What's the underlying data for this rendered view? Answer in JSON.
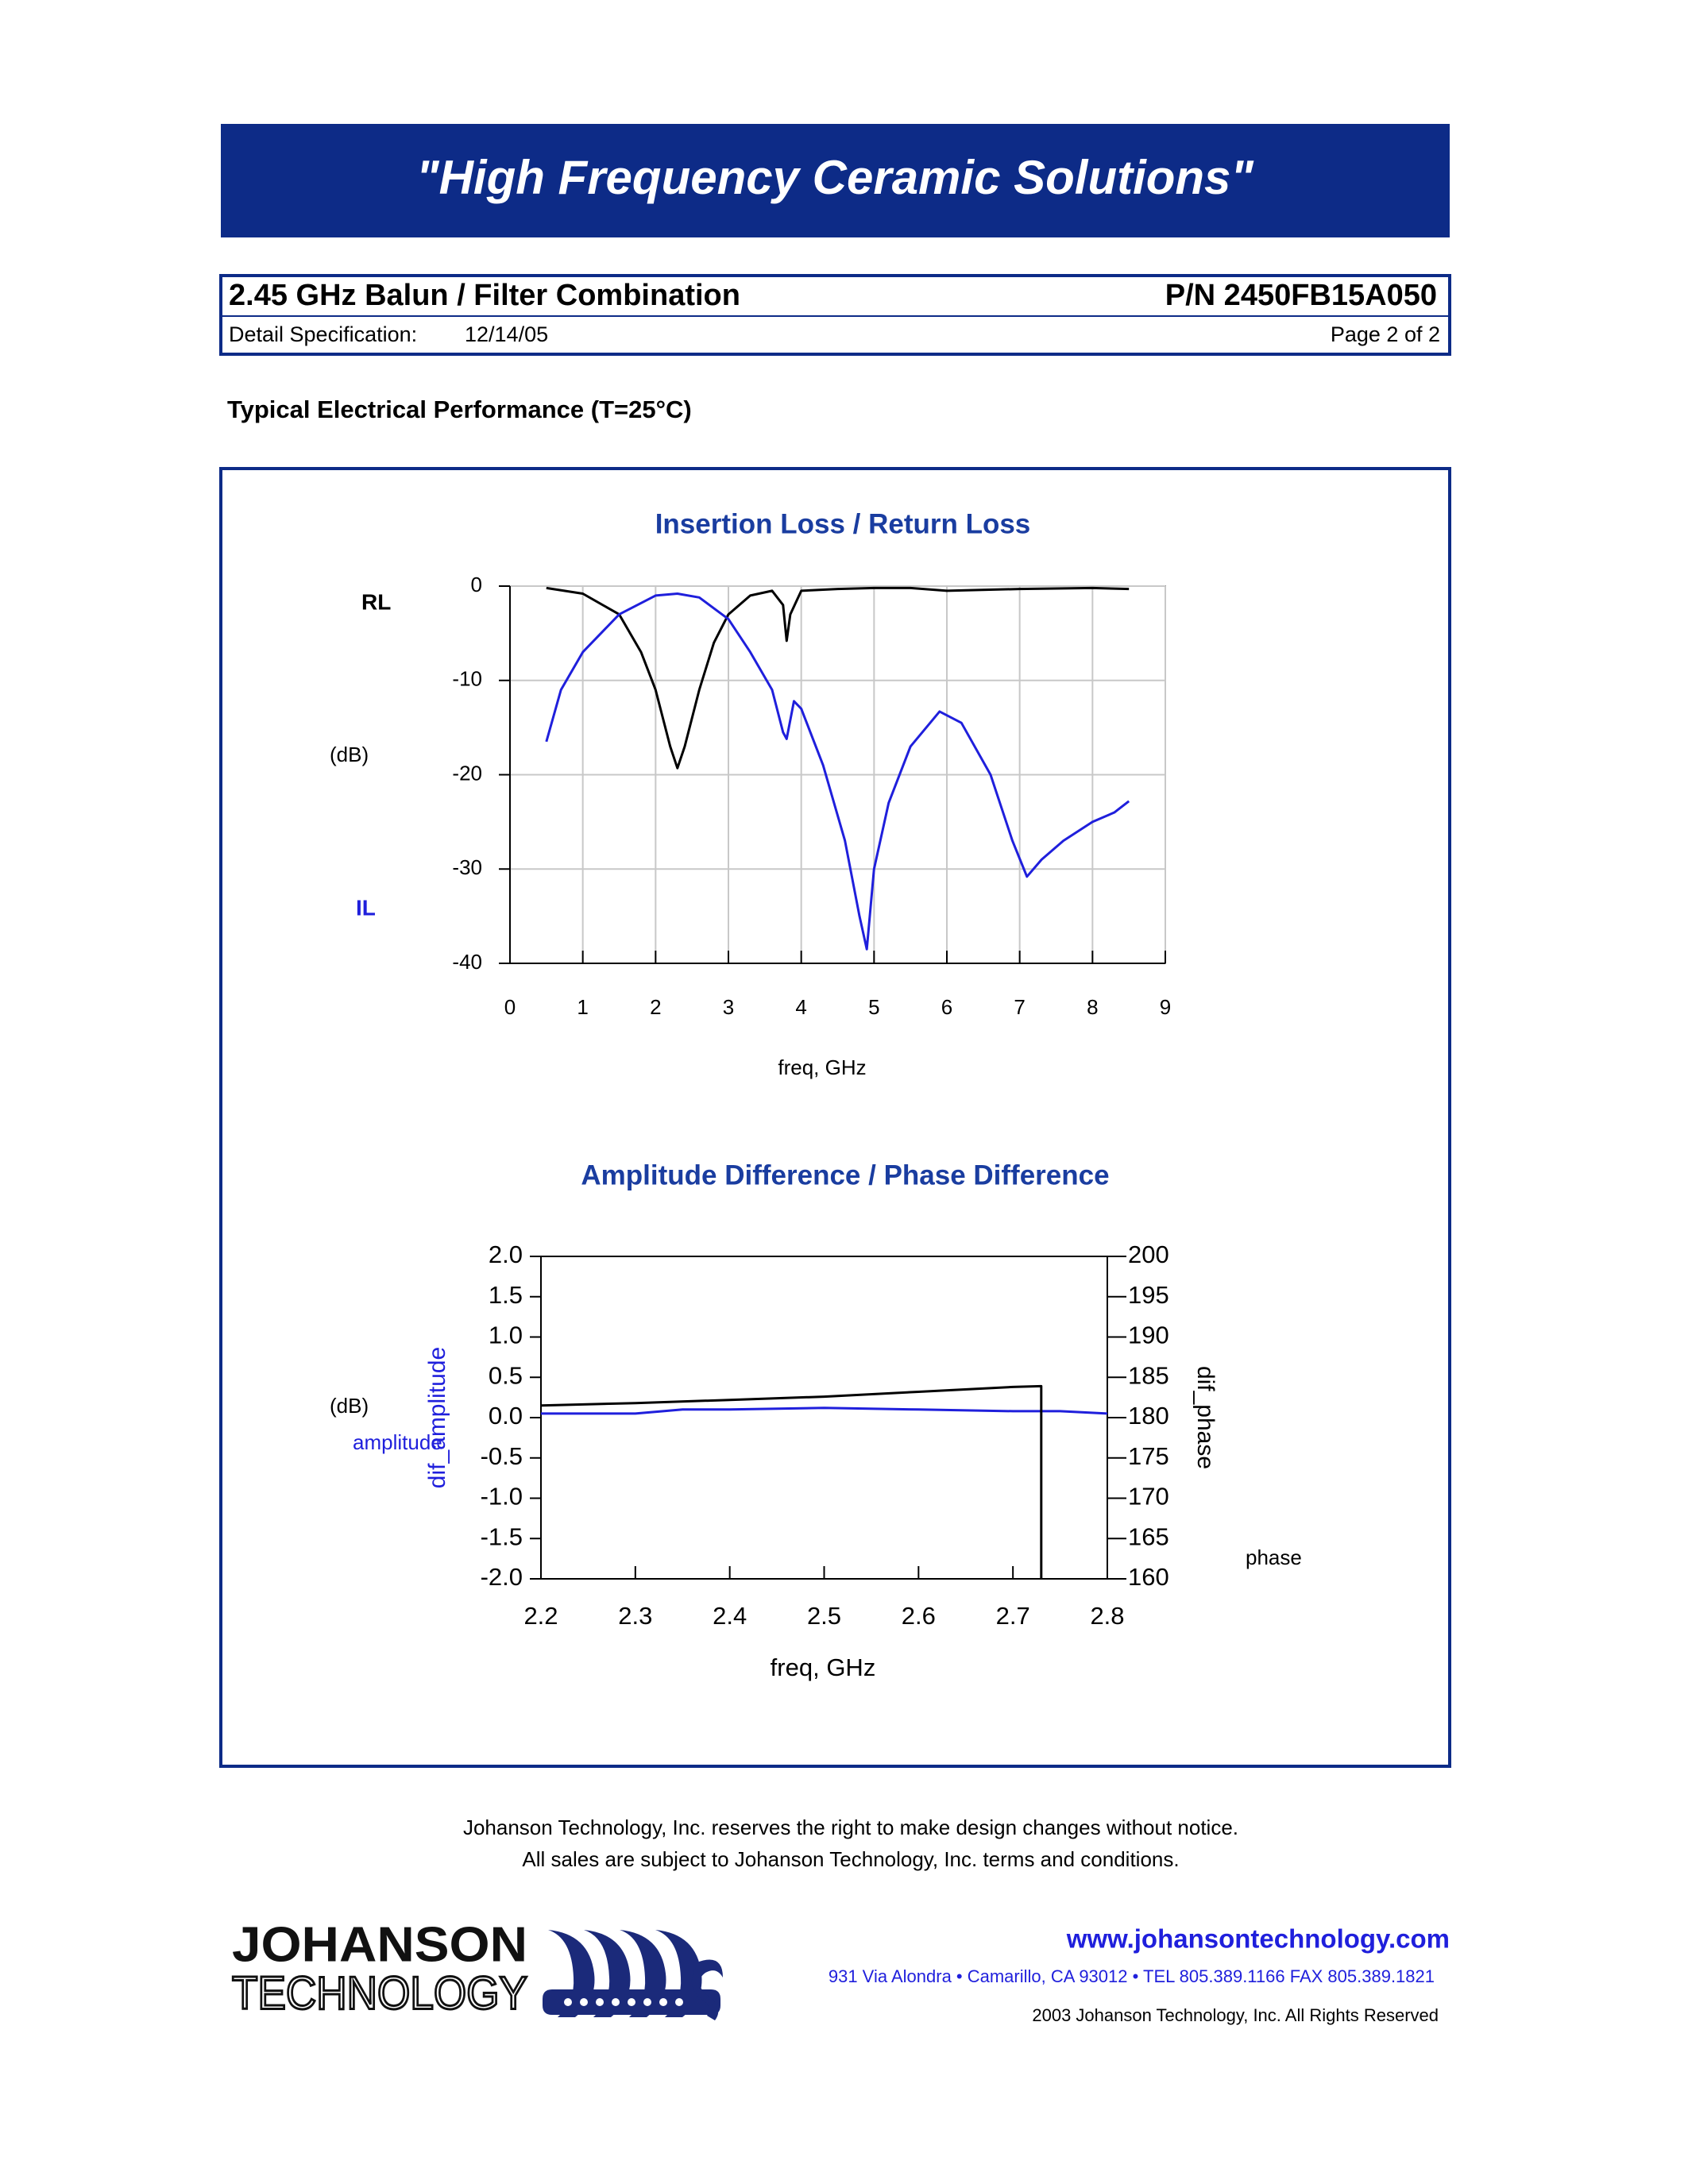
{
  "header": {
    "title": "\"High Frequency Ceramic Solutions\""
  },
  "title_block": {
    "product": "2.45 GHz Balun / Filter Combination",
    "part_number": "P/N 2450FB15A050",
    "spec_label": "Detail Specification:",
    "date": "12/14/05",
    "page": "Page 2 of 2"
  },
  "section": {
    "heading": "Typical Electrical Performance (T=25°C)"
  },
  "chart_data": [
    {
      "type": "line",
      "title": "Insertion Loss / Return Loss",
      "xlabel": "freq, GHz",
      "unit_label": "(dB)",
      "xlim": [
        0,
        9
      ],
      "xticks": [
        0,
        1,
        2,
        3,
        4,
        5,
        6,
        7,
        8,
        9
      ],
      "ylim": [
        -40,
        0
      ],
      "yticks": [
        -40,
        -30,
        -20,
        -10,
        0
      ],
      "grid": true,
      "series": [
        {
          "name": "RL",
          "color": "#000000",
          "x": [
            0.5,
            1.0,
            1.5,
            1.8,
            2.0,
            2.2,
            2.3,
            2.4,
            2.6,
            2.8,
            3.0,
            3.3,
            3.6,
            3.75,
            3.8,
            3.85,
            4.0,
            4.5,
            5.0,
            5.5,
            6.0,
            7.0,
            8.0,
            8.5
          ],
          "values": [
            -0.2,
            -0.8,
            -3,
            -7,
            -11,
            -17,
            -19.3,
            -17,
            -11,
            -6,
            -3,
            -1,
            -0.5,
            -2,
            -5.8,
            -3,
            -0.5,
            -0.3,
            -0.2,
            -0.2,
            -0.5,
            -0.3,
            -0.2,
            -0.3
          ]
        },
        {
          "name": "IL",
          "color": "#1f1fdc",
          "x": [
            0.5,
            0.7,
            1.0,
            1.5,
            2.0,
            2.3,
            2.6,
            3.0,
            3.3,
            3.6,
            3.75,
            3.8,
            3.9,
            4.0,
            4.3,
            4.6,
            4.8,
            4.9,
            5.0,
            5.2,
            5.5,
            5.9,
            6.2,
            6.6,
            6.9,
            7.1,
            7.3,
            7.6,
            8.0,
            8.3,
            8.5
          ],
          "values": [
            -16.5,
            -11,
            -7,
            -3,
            -1,
            -0.8,
            -1.2,
            -3.5,
            -7,
            -11,
            -15.5,
            -16.2,
            -12.2,
            -13,
            -19,
            -27,
            -35,
            -38.5,
            -30,
            -23,
            -17,
            -13.3,
            -14.5,
            -20,
            -27,
            -30.8,
            -29,
            -27,
            -25,
            -24,
            -22.8
          ]
        }
      ]
    },
    {
      "type": "line",
      "title": "Amplitude Difference / Phase Difference",
      "xlabel": "freq, GHz",
      "unit_label": "(dB)",
      "ylabel": "dif_amplitude",
      "y2label": "dif_phase",
      "xlim": [
        2.2,
        2.8
      ],
      "xticks": [
        2.2,
        2.3,
        2.4,
        2.5,
        2.6,
        2.7,
        2.8
      ],
      "ylim": [
        -2,
        2
      ],
      "yticks": [
        {
          "value": -2,
          "label": "-2.0"
        },
        {
          "value": -1.5,
          "label": "-1.5"
        },
        {
          "value": -1,
          "label": "-1.0"
        },
        {
          "value": -0.5,
          "label": "-0.5"
        },
        {
          "value": 0,
          "label": "0.0"
        },
        {
          "value": 0.5,
          "label": "0.5"
        },
        {
          "value": 1,
          "label": "1.0"
        },
        {
          "value": 1.5,
          "label": "1.5"
        },
        {
          "value": 2,
          "label": "2.0"
        }
      ],
      "y2lim": [
        160,
        200
      ],
      "y2ticks": [
        160,
        165,
        170,
        175,
        180,
        185,
        190,
        195,
        200
      ],
      "grid": false,
      "series": [
        {
          "name": "amplitude",
          "color": "#1f1fdc",
          "x": [
            2.2,
            2.3,
            2.35,
            2.4,
            2.5,
            2.6,
            2.7,
            2.75,
            2.8
          ],
          "values": [
            0.05,
            0.05,
            0.1,
            0.1,
            0.12,
            0.1,
            0.08,
            0.08,
            0.05
          ]
        },
        {
          "name": "phase",
          "color": "#000000",
          "axis": "y2",
          "x": [
            2.2,
            2.3,
            2.4,
            2.5,
            2.6,
            2.7,
            2.73,
            2.73
          ],
          "values": [
            181.5,
            181.8,
            182.2,
            182.6,
            183.2,
            183.8,
            183.9,
            160
          ]
        }
      ]
    }
  ],
  "footer": {
    "notice_1": "Johanson Technology, Inc. reserves the right to make design changes without notice.",
    "notice_2": "All sales are subject to Johanson Technology, Inc. terms and conditions.",
    "url": "www.johansontechnology.com",
    "address": "931 Via Alondra • Camarillo, CA 93012 • TEL 805.389.1166 FAX 805.389.1821",
    "copyright": "2003 Johanson Technology, Inc.  All Rights Reserved"
  },
  "logo": {
    "line1": "JOHANSON",
    "line2": "TECHNOLOGY"
  }
}
